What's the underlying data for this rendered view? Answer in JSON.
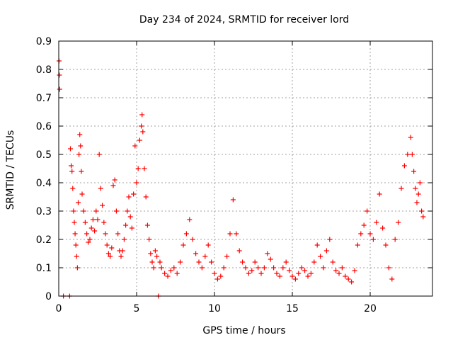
{
  "chart_data": {
    "type": "scatter",
    "title": "Day 234 of 2024, SRMTID for receiver lord",
    "xlabel": "GPS time / hours",
    "ylabel": "SRMTID / TECUs",
    "xlim": [
      0,
      24
    ],
    "ylim": [
      0,
      0.9
    ],
    "xticks": [
      0,
      5,
      10,
      15,
      20
    ],
    "xtick_labels": [
      "0",
      "5",
      "10",
      "15",
      "20"
    ],
    "yticks": [
      0,
      0.1,
      0.2,
      0.3,
      0.4,
      0.5,
      0.6,
      0.7,
      0.8,
      0.9
    ],
    "ytick_labels": [
      "0",
      "0.1",
      "0.2",
      "0.3",
      "0.4",
      "0.5",
      "0.6",
      "0.7",
      "0.8",
      "0.9"
    ],
    "grid": true,
    "marker": "+",
    "color": "#ff0000",
    "series": [
      {
        "name": "SRMTID",
        "points": [
          [
            0.02,
            0.83
          ],
          [
            0.04,
            0.78
          ],
          [
            0.06,
            0.73
          ],
          [
            0.3,
            0.0
          ],
          [
            0.7,
            0.0
          ],
          [
            0.75,
            0.52
          ],
          [
            0.8,
            0.46
          ],
          [
            0.85,
            0.44
          ],
          [
            0.9,
            0.38
          ],
          [
            0.95,
            0.3
          ],
          [
            1.0,
            0.26
          ],
          [
            1.05,
            0.22
          ],
          [
            1.1,
            0.18
          ],
          [
            1.15,
            0.14
          ],
          [
            1.2,
            0.1
          ],
          [
            1.25,
            0.33
          ],
          [
            1.3,
            0.5
          ],
          [
            1.35,
            0.57
          ],
          [
            1.4,
            0.53
          ],
          [
            1.45,
            0.44
          ],
          [
            1.5,
            0.36
          ],
          [
            1.6,
            0.3
          ],
          [
            1.7,
            0.26
          ],
          [
            1.8,
            0.22
          ],
          [
            1.9,
            0.19
          ],
          [
            2.0,
            0.2
          ],
          [
            2.1,
            0.24
          ],
          [
            2.2,
            0.27
          ],
          [
            2.3,
            0.23
          ],
          [
            2.4,
            0.3
          ],
          [
            2.5,
            0.27
          ],
          [
            2.6,
            0.5
          ],
          [
            2.7,
            0.38
          ],
          [
            2.8,
            0.32
          ],
          [
            2.9,
            0.26
          ],
          [
            3.0,
            0.22
          ],
          [
            3.1,
            0.18
          ],
          [
            3.2,
            0.15
          ],
          [
            3.3,
            0.14
          ],
          [
            3.4,
            0.17
          ],
          [
            3.5,
            0.39
          ],
          [
            3.6,
            0.41
          ],
          [
            3.7,
            0.3
          ],
          [
            3.8,
            0.22
          ],
          [
            3.9,
            0.16
          ],
          [
            4.0,
            0.14
          ],
          [
            4.1,
            0.16
          ],
          [
            4.2,
            0.2
          ],
          [
            4.3,
            0.25
          ],
          [
            4.4,
            0.3
          ],
          [
            4.5,
            0.35
          ],
          [
            4.6,
            0.28
          ],
          [
            4.7,
            0.24
          ],
          [
            4.8,
            0.36
          ],
          [
            4.9,
            0.53
          ],
          [
            5.0,
            0.4
          ],
          [
            5.1,
            0.45
          ],
          [
            5.2,
            0.55
          ],
          [
            5.3,
            0.6
          ],
          [
            5.35,
            0.64
          ],
          [
            5.4,
            0.58
          ],
          [
            5.5,
            0.45
          ],
          [
            5.6,
            0.35
          ],
          [
            5.7,
            0.25
          ],
          [
            5.8,
            0.2
          ],
          [
            5.9,
            0.15
          ],
          [
            6.0,
            0.12
          ],
          [
            6.1,
            0.1
          ],
          [
            6.2,
            0.16
          ],
          [
            6.3,
            0.14
          ],
          [
            6.4,
            0.0
          ],
          [
            6.5,
            0.12
          ],
          [
            6.6,
            0.1
          ],
          [
            6.8,
            0.08
          ],
          [
            7.0,
            0.07
          ],
          [
            7.2,
            0.09
          ],
          [
            7.4,
            0.1
          ],
          [
            7.6,
            0.08
          ],
          [
            7.8,
            0.12
          ],
          [
            8.0,
            0.18
          ],
          [
            8.2,
            0.22
          ],
          [
            8.4,
            0.27
          ],
          [
            8.6,
            0.2
          ],
          [
            8.8,
            0.15
          ],
          [
            9.0,
            0.12
          ],
          [
            9.2,
            0.1
          ],
          [
            9.4,
            0.14
          ],
          [
            9.6,
            0.18
          ],
          [
            9.8,
            0.12
          ],
          [
            10.0,
            0.08
          ],
          [
            10.2,
            0.06
          ],
          [
            10.4,
            0.07
          ],
          [
            10.6,
            0.1
          ],
          [
            10.8,
            0.14
          ],
          [
            11.0,
            0.22
          ],
          [
            11.2,
            0.34
          ],
          [
            11.4,
            0.22
          ],
          [
            11.6,
            0.16
          ],
          [
            11.8,
            0.12
          ],
          [
            12.0,
            0.1
          ],
          [
            12.2,
            0.08
          ],
          [
            12.4,
            0.09
          ],
          [
            12.6,
            0.12
          ],
          [
            12.8,
            0.1
          ],
          [
            13.0,
            0.08
          ],
          [
            13.2,
            0.1
          ],
          [
            13.4,
            0.15
          ],
          [
            13.6,
            0.13
          ],
          [
            13.8,
            0.1
          ],
          [
            14.0,
            0.08
          ],
          [
            14.2,
            0.07
          ],
          [
            14.4,
            0.1
          ],
          [
            14.6,
            0.12
          ],
          [
            14.8,
            0.09
          ],
          [
            15.0,
            0.07
          ],
          [
            15.2,
            0.06
          ],
          [
            15.4,
            0.08
          ],
          [
            15.6,
            0.1
          ],
          [
            15.8,
            0.09
          ],
          [
            16.0,
            0.07
          ],
          [
            16.2,
            0.08
          ],
          [
            16.4,
            0.12
          ],
          [
            16.6,
            0.18
          ],
          [
            16.8,
            0.14
          ],
          [
            17.0,
            0.1
          ],
          [
            17.2,
            0.16
          ],
          [
            17.4,
            0.2
          ],
          [
            17.6,
            0.12
          ],
          [
            17.8,
            0.09
          ],
          [
            18.0,
            0.08
          ],
          [
            18.2,
            0.1
          ],
          [
            18.4,
            0.07
          ],
          [
            18.6,
            0.06
          ],
          [
            18.8,
            0.05
          ],
          [
            19.0,
            0.09
          ],
          [
            19.2,
            0.18
          ],
          [
            19.4,
            0.22
          ],
          [
            19.6,
            0.25
          ],
          [
            19.8,
            0.3
          ],
          [
            20.0,
            0.22
          ],
          [
            20.2,
            0.2
          ],
          [
            20.4,
            0.26
          ],
          [
            20.6,
            0.36
          ],
          [
            20.8,
            0.24
          ],
          [
            21.0,
            0.18
          ],
          [
            21.2,
            0.1
          ],
          [
            21.4,
            0.06
          ],
          [
            21.6,
            0.2
          ],
          [
            21.8,
            0.26
          ],
          [
            22.0,
            0.38
          ],
          [
            22.2,
            0.46
          ],
          [
            22.4,
            0.5
          ],
          [
            22.6,
            0.56
          ],
          [
            22.7,
            0.5
          ],
          [
            22.8,
            0.44
          ],
          [
            22.9,
            0.38
          ],
          [
            23.0,
            0.33
          ],
          [
            23.1,
            0.36
          ],
          [
            23.2,
            0.4
          ],
          [
            23.3,
            0.3
          ],
          [
            23.4,
            0.28
          ]
        ]
      }
    ]
  }
}
